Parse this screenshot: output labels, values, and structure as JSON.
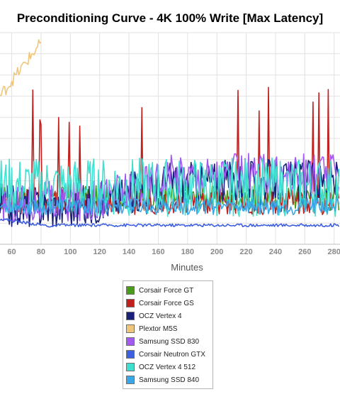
{
  "chart_data": {
    "type": "line",
    "title": "Preconditioning Curve - 4K 100% Write [Max Latency]",
    "xlabel": "Minutes",
    "ylabel": "",
    "xlim": [
      52,
      284
    ],
    "x_ticks": [
      60,
      80,
      100,
      120,
      140,
      160,
      180,
      200,
      220,
      240,
      260,
      280
    ],
    "y_range_hidden": [
      0,
      100
    ],
    "grid": true,
    "legend_position": "bottom-center",
    "series": [
      {
        "name": "Corsair Force GT",
        "color": "#4a9a1c",
        "base": 22,
        "amp": 6,
        "spike_every": 0
      },
      {
        "name": "Corsair Force GS",
        "color": "#c0211f",
        "base": 20,
        "amp": 6,
        "spike_every": 8
      },
      {
        "name": "OCZ Vertex 4",
        "color": "#1a1f7a",
        "base": 30,
        "amp": 10,
        "spike_every": 0
      },
      {
        "name": "Plextor M5S",
        "color": "#f0c77a",
        "base": 72,
        "amp": 12,
        "spike_every": 0
      },
      {
        "name": "Samsung SSD 830",
        "color": "#a35af0",
        "base": 33,
        "amp": 10,
        "spike_every": 0
      },
      {
        "name": "Corsair Neutron GTX",
        "color": "#3d5fe0",
        "base": 9,
        "amp": 1,
        "spike_every": 0
      },
      {
        "name": "OCZ Vertex 4 512",
        "color": "#40e0d0",
        "base": 27,
        "amp": 14,
        "spike_every": 0
      },
      {
        "name": "Samsung SSD 840",
        "color": "#3aa6e8",
        "base": 18,
        "amp": 4,
        "spike_every": 0
      }
    ]
  }
}
